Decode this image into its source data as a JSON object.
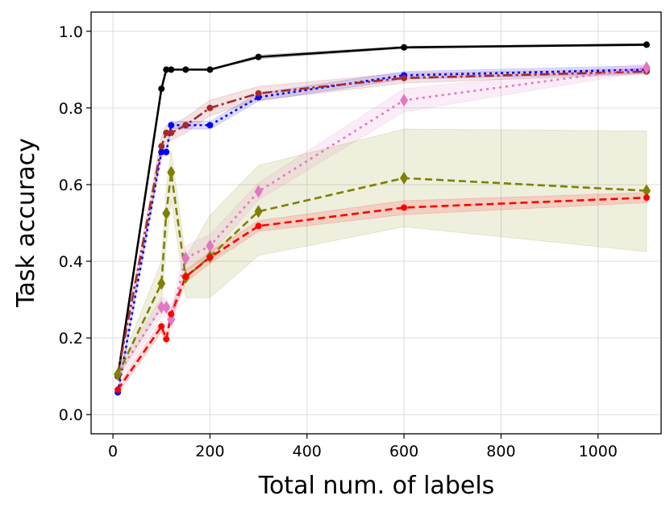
{
  "chart_data": {
    "type": "line",
    "title": "",
    "xlabel": "Total num. of labels",
    "ylabel": "Task accuracy",
    "xlim": [
      -45,
      1130
    ],
    "ylim": [
      -0.05,
      1.05
    ],
    "xticks": [
      0,
      200,
      400,
      600,
      800,
      1000
    ],
    "yticks": [
      0.0,
      0.2,
      0.4,
      0.6,
      0.8,
      1.0
    ],
    "xtick_labels": [
      "0",
      "200",
      "400",
      "600",
      "800",
      "1000"
    ],
    "ytick_labels": [
      "0.0",
      "0.2",
      "0.4",
      "0.6",
      "0.8",
      "1.0"
    ],
    "grid": true,
    "legend": "none",
    "series": [
      {
        "name": "black-solid",
        "color": "#000000",
        "dash": "",
        "marker": "circle",
        "x": [
          10,
          100,
          110,
          120,
          150,
          200,
          300,
          600,
          1100
        ],
        "y": [
          0.1,
          0.85,
          0.9,
          0.9,
          0.9,
          0.9,
          0.933,
          0.958,
          0.965
        ],
        "band_lower": [
          0.1,
          0.85,
          0.9,
          0.9,
          0.9,
          0.9,
          0.928,
          0.955,
          0.962
        ],
        "band_upper": [
          0.1,
          0.85,
          0.9,
          0.9,
          0.9,
          0.9,
          0.938,
          0.961,
          0.968
        ]
      },
      {
        "name": "blue-dotted",
        "color": "#0000ff",
        "dash": "3 4",
        "marker": "circle",
        "x": [
          10,
          100,
          110,
          120,
          150,
          200,
          300,
          600,
          1100
        ],
        "y": [
          0.058,
          0.685,
          0.685,
          0.755,
          0.755,
          0.755,
          0.828,
          0.885,
          0.9
        ],
        "band_lower": [
          0.05,
          0.675,
          0.675,
          0.745,
          0.745,
          0.745,
          0.818,
          0.875,
          0.89
        ],
        "band_upper": [
          0.066,
          0.695,
          0.695,
          0.765,
          0.765,
          0.765,
          0.838,
          0.895,
          0.91
        ]
      },
      {
        "name": "brown-dashdot",
        "color": "#a52a2a",
        "dash": "12 4 3 4",
        "marker": "circle",
        "x": [
          10,
          100,
          110,
          120,
          150,
          200,
          300,
          600,
          1100
        ],
        "y": [
          0.105,
          0.7,
          0.735,
          0.735,
          0.755,
          0.8,
          0.838,
          0.878,
          0.895
        ],
        "band_lower": [
          0.095,
          0.675,
          0.715,
          0.715,
          0.735,
          0.78,
          0.82,
          0.865,
          0.888
        ],
        "band_upper": [
          0.115,
          0.725,
          0.755,
          0.755,
          0.775,
          0.82,
          0.856,
          0.891,
          0.902
        ]
      },
      {
        "name": "pink-dotted-diamond",
        "color": "#e377c2",
        "dash": "3 5",
        "marker": "diamond",
        "x": [
          10,
          100,
          110,
          120,
          150,
          200,
          300,
          600,
          1100
        ],
        "y": [
          0.105,
          0.28,
          0.28,
          0.248,
          0.408,
          0.44,
          0.582,
          0.82,
          0.905
        ],
        "band_lower": [
          0.085,
          0.255,
          0.255,
          0.225,
          0.375,
          0.415,
          0.56,
          0.79,
          0.895
        ],
        "band_upper": [
          0.125,
          0.305,
          0.305,
          0.275,
          0.44,
          0.47,
          0.605,
          0.85,
          0.915
        ]
      },
      {
        "name": "olive-dashed-diamond",
        "color": "#808000",
        "dash": "9 5",
        "marker": "diamond",
        "x": [
          10,
          100,
          110,
          120,
          150,
          200,
          300,
          600,
          1100
        ],
        "y": [
          0.105,
          0.342,
          0.525,
          0.632,
          0.358,
          0.412,
          0.53,
          0.617,
          0.584
        ],
        "band_lower": [
          0.095,
          0.28,
          0.44,
          0.56,
          0.305,
          0.305,
          0.415,
          0.49,
          0.425
        ],
        "band_upper": [
          0.115,
          0.4,
          0.59,
          0.69,
          0.41,
          0.52,
          0.65,
          0.745,
          0.74
        ]
      },
      {
        "name": "red-dashed",
        "color": "#ff0000",
        "dash": "9 5",
        "marker": "circle",
        "x": [
          10,
          100,
          110,
          120,
          150,
          200,
          300,
          600,
          1100
        ],
        "y": [
          0.065,
          0.23,
          0.197,
          0.262,
          0.36,
          0.41,
          0.492,
          0.54,
          0.566
        ],
        "band_lower": [
          0.055,
          0.215,
          0.182,
          0.247,
          0.345,
          0.395,
          0.478,
          0.522,
          0.553
        ],
        "band_upper": [
          0.075,
          0.245,
          0.212,
          0.277,
          0.375,
          0.425,
          0.506,
          0.558,
          0.579
        ]
      }
    ]
  }
}
